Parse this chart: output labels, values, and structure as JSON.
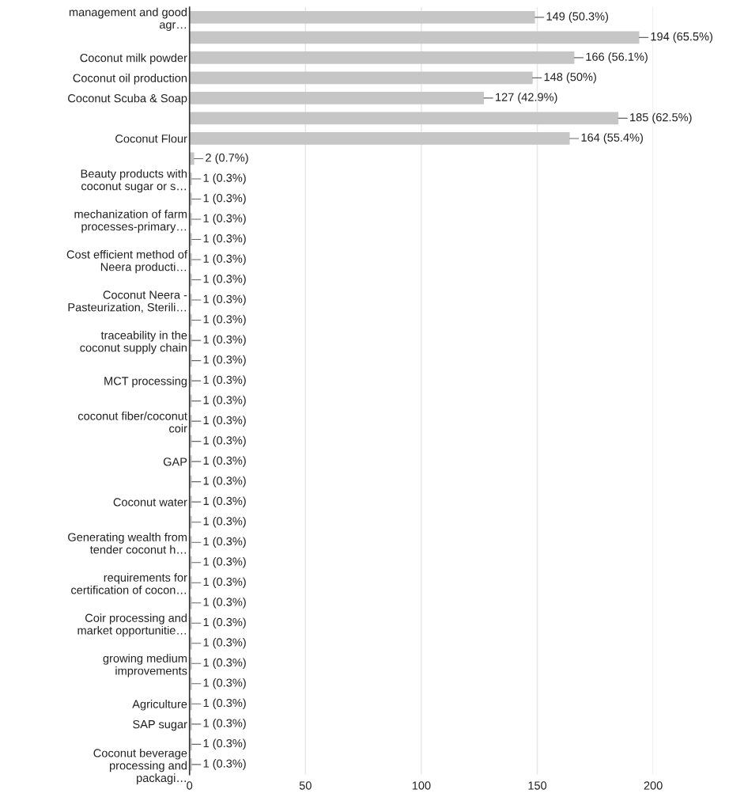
{
  "chart_data": {
    "type": "bar",
    "orientation": "horizontal",
    "categories": [
      "management and good\nagr…",
      null,
      "Coconut milk powder",
      "Coconut oil production",
      "Coconut Scuba & Soap",
      null,
      "Coconut Flour",
      null,
      "Beauty products with\ncoconut sugar or s…",
      null,
      "mechanization of farm\nprocesses-primary…",
      null,
      "Cost efficient method of\nNeera producti…",
      null,
      "Coconut Neera -\nPasteurization, Sterili…",
      null,
      "traceability in the\ncoconut supply chain",
      null,
      "MCT processing",
      null,
      "coconut fiber/coconut\ncoir",
      null,
      "GAP",
      null,
      "Coconut water",
      null,
      "Generating wealth from\ntender coconut h…",
      null,
      "requirements for\ncertification of cocon…",
      null,
      "Coir processing and\nmarket opportunitie…",
      null,
      "growing medium\nimprovements",
      null,
      "Agriculture",
      "SAP sugar",
      null,
      "Coconut beverage\nprocessing and\npackagi…"
    ],
    "values": [
      149,
      194,
      166,
      148,
      127,
      185,
      164,
      2,
      1,
      1,
      1,
      1,
      1,
      1,
      1,
      1,
      1,
      1,
      1,
      1,
      1,
      1,
      1,
      1,
      1,
      1,
      1,
      1,
      1,
      1,
      1,
      1,
      1,
      1,
      1,
      1,
      1,
      1
    ],
    "value_labels": [
      "149 (50.3%)",
      "194 (65.5%)",
      "166 (56.1%)",
      "148 (50%)",
      "127 (42.9%)",
      "185 (62.5%)",
      "164 (55.4%)",
      "2 (0.7%)",
      "1 (0.3%)",
      "1 (0.3%)",
      "1 (0.3%)",
      "1 (0.3%)",
      "1 (0.3%)",
      "1 (0.3%)",
      "1 (0.3%)",
      "1 (0.3%)",
      "1 (0.3%)",
      "1 (0.3%)",
      "1 (0.3%)",
      "1 (0.3%)",
      "1 (0.3%)",
      "1 (0.3%)",
      "1 (0.3%)",
      "1 (0.3%)",
      "1 (0.3%)",
      "1 (0.3%)",
      "1 (0.3%)",
      "1 (0.3%)",
      "1 (0.3%)",
      "1 (0.3%)",
      "1 (0.3%)",
      "1 (0.3%)",
      "1 (0.3%)",
      "1 (0.3%)",
      "1 (0.3%)",
      "1 (0.3%)",
      "1 (0.3%)",
      "1 (0.3%)"
    ],
    "color": "#c6c6c6",
    "xlim": [
      0,
      200
    ],
    "xticks": [
      0,
      50,
      100,
      150,
      200
    ],
    "grid": "x"
  }
}
